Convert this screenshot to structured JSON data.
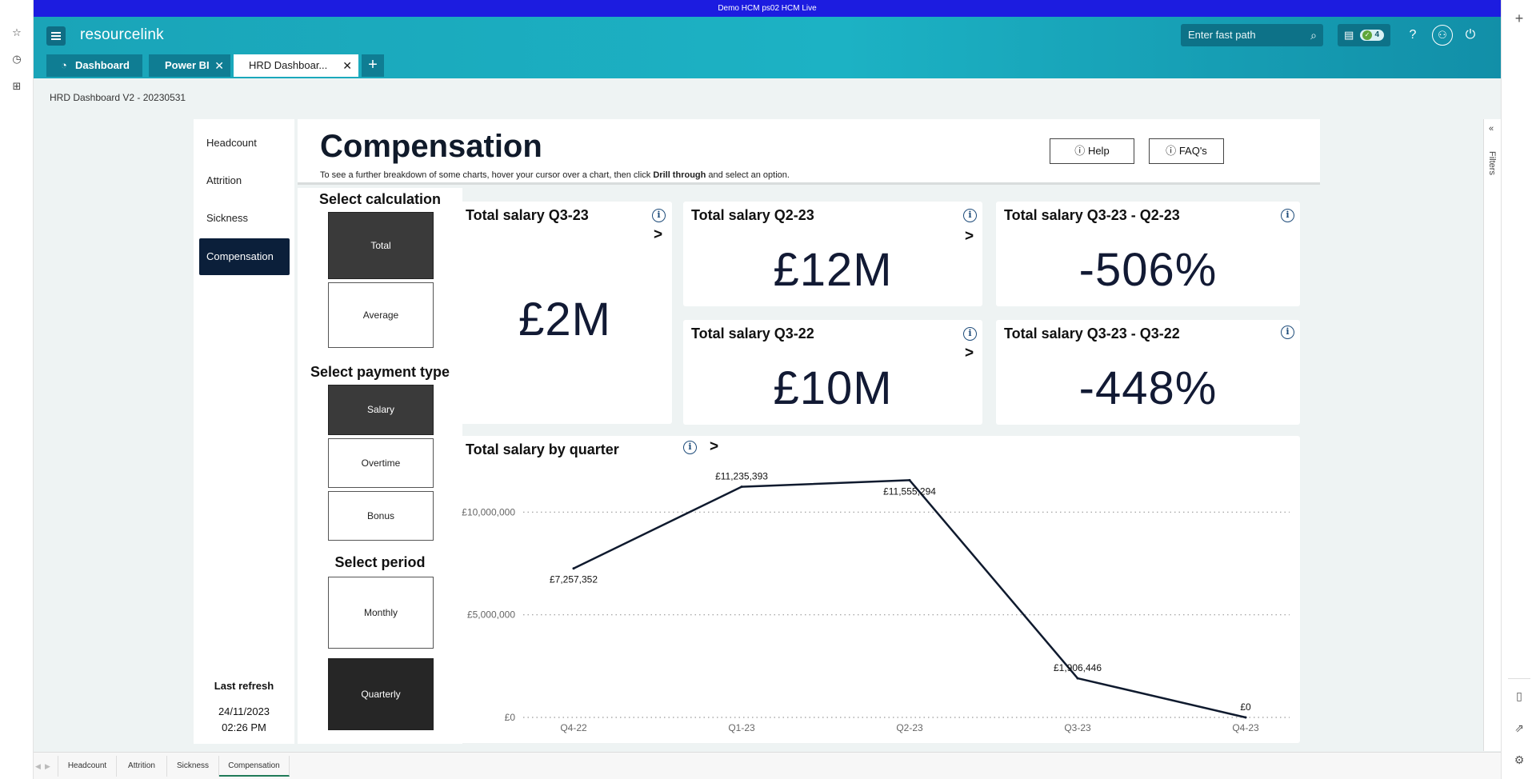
{
  "env_banner": "Demo HCM ps02 HCM Live",
  "header": {
    "logo": "resourcelink",
    "tabs": [
      {
        "label": "Dashboard",
        "closable": false
      },
      {
        "label": "Power BI",
        "closable": true
      },
      {
        "label": "HRD Dashboar...",
        "closable": true
      }
    ],
    "fast_path_placeholder": "Enter fast path",
    "notification_count": "4"
  },
  "breadcrumb": "HRD Dashboard V2 - 20230531",
  "nav": {
    "items": [
      "Headcount",
      "Attrition",
      "Sickness",
      "Compensation"
    ],
    "active": "Compensation",
    "last_refresh_label": "Last refresh",
    "last_refresh_date": "24/11/2023",
    "last_refresh_time": "02:26 PM"
  },
  "page": {
    "title": "Compensation",
    "subtitle_pre": "To see a further breakdown of some charts, hover your cursor over a chart, then click ",
    "subtitle_bold": "Drill through",
    "subtitle_post": " and select an option.",
    "help_label": "Help",
    "faq_label": "FAQ's"
  },
  "slicers": {
    "calculation": {
      "title": "Select calculation",
      "options": [
        "Total",
        "Average"
      ],
      "selected": "Total"
    },
    "payment_type": {
      "title": "Select payment type",
      "options": [
        "Salary",
        "Overtime",
        "Bonus"
      ],
      "selected": "Salary"
    },
    "period": {
      "title": "Select period",
      "options": [
        "Monthly",
        "Quarterly"
      ],
      "selected": "Quarterly"
    }
  },
  "cards": [
    {
      "title": "Total salary Q3-23",
      "value": "£2M"
    },
    {
      "title": "Total salary Q2-23",
      "value": "£12M"
    },
    {
      "title": "Total salary Q3-23 - Q2-23",
      "value": "-506%"
    },
    {
      "title": "Total salary Q3-22",
      "value": "£10M"
    },
    {
      "title": "Total salary Q3-23 - Q3-22",
      "value": "-448%"
    }
  ],
  "chart_data": {
    "type": "line",
    "title": "Total salary by quarter",
    "categories": [
      "Q4-22",
      "Q1-23",
      "Q2-23",
      "Q3-23",
      "Q4-23"
    ],
    "series": [
      {
        "values": [
          7257352,
          11235393,
          11555294,
          1906446,
          0
        ]
      }
    ],
    "data_labels": [
      "£7,257,352",
      "£11,235,393",
      "£11,555,294",
      "£1,906,446",
      "£0"
    ],
    "y_ticks": [
      0,
      5000000,
      10000000
    ],
    "y_tick_labels": [
      "£0",
      "£5,000,000",
      "£10,000,000"
    ],
    "ylim": [
      0,
      12000000
    ],
    "grid": true,
    "line_color": "#0f1a2e"
  },
  "page_tabs": [
    "Headcount",
    "Attrition",
    "Sickness",
    "Compensation"
  ],
  "active_page_tab": "Compensation",
  "filters_label": "Filters"
}
